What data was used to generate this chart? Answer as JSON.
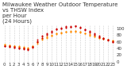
{
  "title": "Milwaukee Weather Outdoor Temperature\nvs THSW Index\nper Hour\n(24 Hours)",
  "background_color": "#ffffff",
  "grid_color": "#cccccc",
  "xlim": [
    -0.5,
    23.5
  ],
  "ylim": [
    0,
    110
  ],
  "hours_temp": [
    0,
    0,
    0,
    1,
    1,
    1,
    2,
    2,
    2,
    3,
    3,
    3,
    4,
    4,
    4,
    5,
    5,
    5,
    6,
    6,
    6,
    7,
    7,
    7,
    8,
    8,
    8,
    9,
    9,
    9,
    10,
    10,
    10,
    11,
    11,
    11,
    12,
    12,
    12,
    13,
    13,
    13,
    14,
    14,
    14,
    15,
    15,
    15,
    16,
    16,
    16,
    17,
    17,
    17,
    18,
    18,
    18,
    19,
    19,
    19,
    20,
    20,
    20,
    21,
    21,
    21,
    22,
    22,
    22,
    23,
    23,
    23
  ],
  "temp_values": [
    52,
    50,
    51,
    49,
    48,
    50,
    47,
    46,
    48,
    45,
    44,
    46,
    43,
    42,
    44,
    41,
    40,
    42,
    45,
    46,
    47,
    55,
    58,
    60,
    65,
    68,
    70,
    72,
    75,
    74,
    78,
    80,
    79,
    83,
    85,
    84,
    87,
    88,
    86,
    90,
    91,
    89,
    91,
    92,
    90,
    92,
    93,
    91,
    90,
    89,
    88,
    86,
    85,
    84,
    82,
    80,
    79,
    78,
    76,
    75,
    73,
    72,
    71,
    70,
    69,
    68,
    67,
    66,
    65,
    64,
    63,
    62
  ],
  "hours_thsw": [
    0,
    0,
    0,
    1,
    1,
    1,
    2,
    2,
    2,
    3,
    3,
    3,
    4,
    4,
    4,
    5,
    5,
    5,
    6,
    6,
    6,
    7,
    7,
    7,
    8,
    8,
    8,
    9,
    9,
    9,
    10,
    10,
    10,
    11,
    11,
    11,
    12,
    12,
    12,
    13,
    13,
    13,
    14,
    14,
    14,
    15,
    15,
    15,
    16,
    16,
    16,
    17,
    17,
    17,
    18,
    18,
    18,
    19,
    19,
    19,
    20,
    20,
    20,
    21,
    21,
    21,
    22,
    22,
    22,
    23,
    23,
    23
  ],
  "thsw_values": [
    48,
    46,
    47,
    45,
    44,
    46,
    43,
    42,
    44,
    41,
    40,
    42,
    39,
    38,
    40,
    37,
    36,
    38,
    42,
    44,
    45,
    58,
    62,
    65,
    72,
    76,
    78,
    80,
    84,
    82,
    88,
    92,
    90,
    96,
    99,
    97,
    100,
    102,
    100,
    104,
    106,
    103,
    105,
    107,
    104,
    107,
    109,
    106,
    104,
    102,
    101,
    98,
    96,
    95,
    92,
    89,
    87,
    85,
    82,
    80,
    77,
    75,
    74,
    72,
    70,
    69,
    67,
    65,
    64,
    62,
    60,
    59
  ],
  "temp_color": "#ff8c00",
  "thsw_color": "#cc0000",
  "dot_size": 2,
  "tick_fontsize": 4,
  "title_fontsize": 5,
  "xtick_positions": [
    0,
    1,
    2,
    3,
    4,
    5,
    6,
    7,
    8,
    9,
    10,
    11,
    12,
    13,
    14,
    15,
    16,
    17,
    18,
    19,
    20,
    21,
    22,
    23
  ],
  "xtick_labels": [
    "0",
    "1",
    "2",
    "3",
    "4",
    "5",
    "6",
    "7",
    "8",
    "9",
    "10",
    "11",
    "12",
    "13",
    "14",
    "15",
    "16",
    "17",
    "18",
    "19",
    "20",
    "21",
    "22",
    "23"
  ],
  "ytick_positions": [
    0,
    20,
    40,
    60,
    80,
    100
  ],
  "ytick_labels": [
    "0",
    "20",
    "40",
    "60",
    "80",
    "100"
  ]
}
